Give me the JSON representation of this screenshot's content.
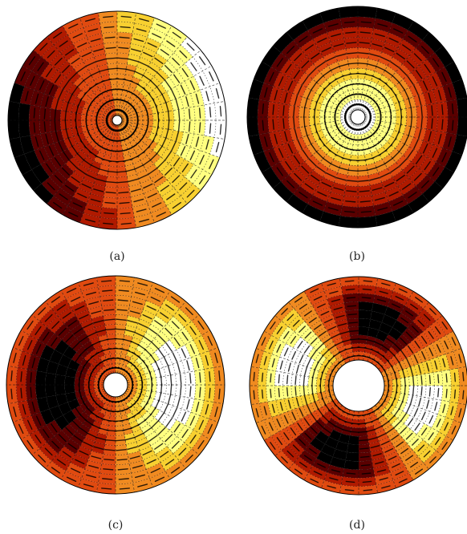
{
  "panels": [
    {
      "caption": "(a)",
      "hole": "small",
      "pattern": "linear-gradient-horizontal",
      "description_colors": [
        "#000000",
        "#5a0000",
        "#b01a00",
        "#e04a10",
        "#f08a20",
        "#f8d030",
        "#ffff80",
        "#ffffff"
      ]
    },
    {
      "caption": "(b)",
      "hole": "small",
      "pattern": "radial-bright-center",
      "description_colors": [
        "#000000",
        "#5a0000",
        "#b01a00",
        "#e04a10",
        "#f08a20",
        "#f8d030",
        "#ffff80",
        "#ffffff"
      ]
    },
    {
      "caption": "(c)",
      "hole": "small",
      "pattern": "dipole-left-dark-right-bright",
      "description_colors": [
        "#000000",
        "#5a0000",
        "#b01a00",
        "#e04a10",
        "#f08a20",
        "#f8d030",
        "#ffff80",
        "#ffffff"
      ]
    },
    {
      "caption": "(d)",
      "hole": "large",
      "pattern": "quadrupole",
      "description_colors": [
        "#000000",
        "#5a0000",
        "#b01a00",
        "#e04a10",
        "#f08a20",
        "#f8d030",
        "#ffff80",
        "#ffffff"
      ]
    }
  ]
}
